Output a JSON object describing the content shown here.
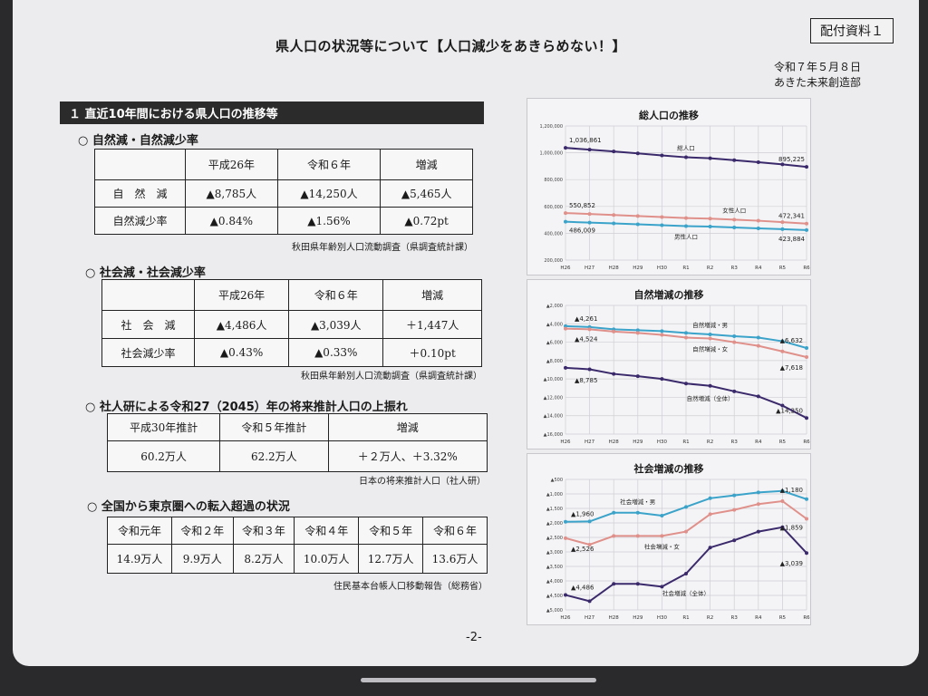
{
  "header": {
    "title": "県人口の状況等について【人口減少をあきらめない！】",
    "stamp": "配付資料１",
    "date": "令和７年５月８日",
    "department": "あきた未来創造部"
  },
  "section1": {
    "label": "１ 直近10年間における県人口の推移等"
  },
  "natural": {
    "heading": "○ 自然減・自然減少率",
    "columns": [
      "",
      "平成26年",
      "令和６年",
      "増減"
    ],
    "rows": [
      [
        "自　然　減",
        "▲8,785人",
        "▲14,250人",
        "▲5,465人"
      ],
      [
        "自然減少率",
        "▲0.84%",
        "▲1.56%",
        "▲0.72pt"
      ]
    ],
    "source": "秋田県年齢別人口流動調査（県調査統計課）"
  },
  "social": {
    "heading": "○ 社会減・社会減少率",
    "columns": [
      "",
      "平成26年",
      "令和６年",
      "増減"
    ],
    "rows": [
      [
        "社　会　減",
        "▲4,486人",
        "▲3,039人",
        "＋1,447人"
      ],
      [
        "社会減少率",
        "▲0.43%",
        "▲0.33%",
        "＋0.10pt"
      ]
    ],
    "source": "秋田県年齢別人口流動調査（県調査統計課）"
  },
  "projection": {
    "heading": "○ 社人研による令和27（2045）年の将来推計人口の上振れ",
    "columns": [
      "平成30年推計",
      "令和５年推計",
      "増減"
    ],
    "row": [
      "60.2万人",
      "62.2万人",
      "＋２万人、＋3.32%"
    ],
    "source": "日本の将来推計人口（社人研）"
  },
  "migration": {
    "heading": "○ 全国から東京圏への転入超過の状況",
    "columns": [
      "令和元年",
      "令和２年",
      "令和３年",
      "令和４年",
      "令和５年",
      "令和６年"
    ],
    "row": [
      "14.9万人",
      "9.9万人",
      "8.2万人",
      "10.0万人",
      "12.7万人",
      "13.6万人"
    ],
    "source": "住民基本台帳人口移動報告（総務省）"
  },
  "page_number": "-2-",
  "colors": {
    "total": "#3b2a6b",
    "female": "#e0908a",
    "male": "#3ba3c9",
    "grid": "#cfcfd4"
  },
  "chart_data": [
    {
      "type": "line",
      "title": "総人口の推移",
      "categories": [
        "H26",
        "H27",
        "H28",
        "H29",
        "H30",
        "R1",
        "R2",
        "R3",
        "R4",
        "R5",
        "R6"
      ],
      "ylim": [
        200000,
        1200000
      ],
      "yticks": [
        "1,200,000",
        "1,000,000",
        "800,000",
        "600,000",
        "400,000",
        "200,000"
      ],
      "series": [
        {
          "name": "総人口",
          "values": [
            1036861,
            1023119,
            1009659,
            995374,
            980684,
            966490,
            959502,
            944902,
            929901,
            913357,
            895225
          ]
        },
        {
          "name": "女性人口",
          "values": [
            550852,
            543700,
            536300,
            528700,
            520900,
            513200,
            509300,
            501500,
            493500,
            482900,
            472341
          ]
        },
        {
          "name": "男性人口",
          "values": [
            486009,
            479400,
            473300,
            466700,
            459800,
            453300,
            450200,
            443400,
            436400,
            430500,
            423884
          ]
        }
      ],
      "annotations": [
        "1,036,861",
        "895,225",
        "550,852",
        "472,341",
        "486,009",
        "423,884"
      ]
    },
    {
      "type": "line",
      "title": "自然増減の推移",
      "categories": [
        "H26",
        "H27",
        "H28",
        "H29",
        "H30",
        "R1",
        "R2",
        "R3",
        "R4",
        "R5",
        "R6"
      ],
      "ylim": [
        -16000,
        -2000
      ],
      "yticks": [
        "▲2,000",
        "▲4,000",
        "▲6,000",
        "▲8,000",
        "▲10,000",
        "▲12,000",
        "▲14,000",
        "▲16,000"
      ],
      "series": [
        {
          "name": "自然増減・男",
          "values": [
            -4261,
            -4350,
            -4600,
            -4700,
            -4800,
            -5000,
            -5150,
            -5350,
            -5500,
            -5900,
            -6632
          ]
        },
        {
          "name": "自然増減・女",
          "values": [
            -4524,
            -4600,
            -4850,
            -5000,
            -5200,
            -5500,
            -5600,
            -6000,
            -6400,
            -7000,
            -7618
          ]
        },
        {
          "name": "自然増減（全体）",
          "values": [
            -8785,
            -8950,
            -9450,
            -9700,
            -10000,
            -10500,
            -10750,
            -11350,
            -11900,
            -12900,
            -14250
          ]
        }
      ],
      "annotations": [
        "▲4,261",
        "▲4,524",
        "▲8,785",
        "▲6,632",
        "▲7,618",
        "▲14,250"
      ]
    },
    {
      "type": "line",
      "title": "社会増減の推移",
      "categories": [
        "H26",
        "H27",
        "H28",
        "H29",
        "H30",
        "R1",
        "R2",
        "R3",
        "R4",
        "R5",
        "R6"
      ],
      "ylim": [
        -5000,
        -500
      ],
      "yticks": [
        "▲500",
        "▲1,000",
        "▲1,500",
        "▲2,000",
        "▲2,500",
        "▲3,000",
        "▲3,500",
        "▲4,000",
        "▲4,500",
        "▲5,000"
      ],
      "series": [
        {
          "name": "社会増減・男",
          "values": [
            -1960,
            -1950,
            -1650,
            -1650,
            -1750,
            -1450,
            -1150,
            -1050,
            -950,
            -900,
            -1180
          ]
        },
        {
          "name": "社会増減・女",
          "values": [
            -2526,
            -2750,
            -2450,
            -2450,
            -2450,
            -2300,
            -1700,
            -1550,
            -1350,
            -1250,
            -1859
          ]
        },
        {
          "name": "社会増減（全体）",
          "values": [
            -4486,
            -4700,
            -4100,
            -4100,
            -4200,
            -3750,
            -2850,
            -2600,
            -2300,
            -2150,
            -3039
          ]
        }
      ],
      "annotations": [
        "▲1,960",
        "▲2,526",
        "▲4,486",
        "▲1,180",
        "▲1,859",
        "▲3,039"
      ]
    }
  ]
}
